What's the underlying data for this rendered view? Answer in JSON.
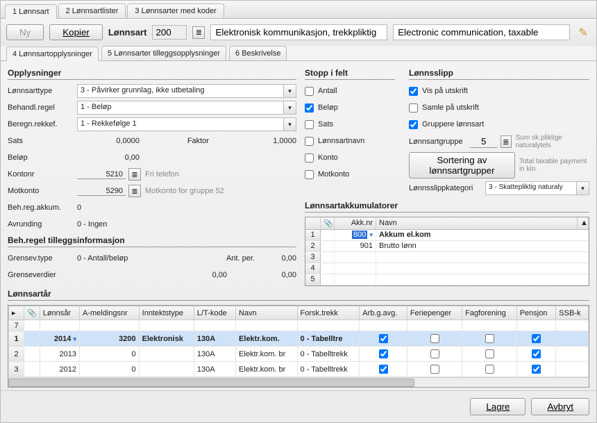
{
  "toptabs": [
    "1 Lønnsart",
    "2 Lønnsartlister",
    "3 Lønnsarter med koder"
  ],
  "toolbar": {
    "new": "Ny",
    "copy": "Kopier",
    "label": "Lønnsart",
    "code": "200",
    "name_no": "Elektronisk kommunikasjon, trekkpliktig",
    "name_en": "Electronic communication, taxable"
  },
  "subtabs": [
    "4 Lønnsartopplysninger",
    "5 Lønnsarter tilleggsopplysninger",
    "6 Beskrivelse"
  ],
  "opp": {
    "title": "Opplysninger",
    "type_label": "Lønnsarttype",
    "type_val": "3 - Påvirker grunnlag, ikke utbetaling",
    "beh_label": "Behandl.regel",
    "beh_val": "1 - Beløp",
    "ber_label": "Beregn.rekkef.",
    "ber_val": "1 - Rekkefølge 1",
    "sats_label": "Sats",
    "sats_val": "0,0000",
    "faktor_label": "Faktor",
    "faktor_val": "1,0000",
    "belop_label": "Beløp",
    "belop_val": "0,00",
    "kontonr_label": "Kontonr",
    "kontonr_val": "5210",
    "kontonr_hint": "Fri telefon",
    "motk_label": "Motkonto",
    "motk_val": "5290",
    "motk_hint": "Motkonto for gruppe 52",
    "behreg_label": "Beh.reg.akkum.",
    "behreg_val": "0",
    "avr_label": "Avrunding",
    "avr_val": "0 - Ingen"
  },
  "tillegg": {
    "title": "Beh.regel tilleggsinformasjon",
    "gtype_label": "Grensev.type",
    "gtype_val": "0 - Antall/beløp",
    "antper_label": "Ant. per.",
    "antper_val": "0,00",
    "gverd_label": "Grenseverdier",
    "gverd_val1": "0,00",
    "gverd_val2": "0,00"
  },
  "stopp": {
    "title": "Stopp i felt",
    "antall": "Antall",
    "belop": "Beløp",
    "sats": "Sats",
    "lart": "Lønnsartnavn",
    "konto": "Konto",
    "motk": "Motkonto"
  },
  "slipp": {
    "title": "Lønnsslipp",
    "vis": "Vis på utskrift",
    "samle": "Samle på utskrift",
    "gruppe": "Gruppere lønnsart",
    "lgruppe_label": "Lønnsartgruppe",
    "lgruppe_val": "5",
    "lgruppe_hint": "Sum sk.pliktige naturalytels",
    "sort_btn": "Sortering av lønnsartgrupper",
    "sort_hint": "Total taxable payment in kin",
    "kat_label": "Lønnsslippkategori",
    "kat_val": "3 - Skattepliktig naturaly"
  },
  "akk": {
    "title": "Lønnsartakkumulatorer",
    "col_nr": "Akk.nr",
    "col_navn": "Navn",
    "rows": [
      {
        "nr": "800",
        "navn": "Akkum el.kom",
        "sel": true
      },
      {
        "nr": "901",
        "navn": "Brutto lønn"
      }
    ]
  },
  "year": {
    "title": "Lønnsartår",
    "cols": [
      "",
      "",
      "Lønnsår",
      "A-meldingsnr",
      "Inntektstype",
      "L/T-kode",
      "Navn",
      "Forsk.trekk",
      "Arb.g.avg.",
      "Feriepenger",
      "Fagforening",
      "Pensjon",
      "SSB-k"
    ],
    "rows": [
      {
        "n": "7",
        "year": "",
        "am": "",
        "it": "",
        "lt": "",
        "navn": "",
        "ft": "",
        "aga": "",
        "fp": "",
        "fag": "",
        "pen": ""
      },
      {
        "n": "1",
        "year": "2014",
        "am": "3200",
        "it": "Elektronisk",
        "lt": "130A",
        "navn": "Elektr.kom.",
        "ft": "0 - Tabelltre",
        "aga": true,
        "fp": false,
        "fag": false,
        "pen": true,
        "bold": true,
        "sel": true
      },
      {
        "n": "2",
        "year": "2013",
        "am": "0",
        "it": "",
        "lt": "130A",
        "navn": "Elektr.kom. br",
        "ft": "0 - Tabelltrekk",
        "aga": true,
        "fp": false,
        "fag": false,
        "pen": true
      },
      {
        "n": "3",
        "year": "2012",
        "am": "0",
        "it": "",
        "lt": "130A",
        "navn": "Elektr.kom. br",
        "ft": "0 - Tabelltrekk",
        "aga": true,
        "fp": false,
        "fag": false,
        "pen": true
      }
    ]
  },
  "footer": {
    "save": "Lagre",
    "cancel": "Avbryt"
  }
}
